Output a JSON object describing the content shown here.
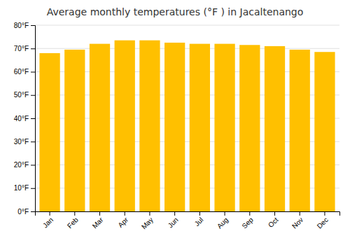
{
  "chart_data": {
    "type": "bar",
    "title": "Average monthly temperatures (°F ) in Jacaltenango",
    "categories": [
      "Jan",
      "Feb",
      "Mar",
      "Apr",
      "May",
      "Jun",
      "Jul",
      "Aug",
      "Sep",
      "Oct",
      "Nov",
      "Dec"
    ],
    "values": [
      68.0,
      69.5,
      72.0,
      73.5,
      73.5,
      72.5,
      72.0,
      72.0,
      71.5,
      71.0,
      69.5,
      68.5
    ],
    "color": "#FFC000",
    "ylim": [
      0,
      80
    ],
    "yticks": [
      {
        "value": 0,
        "label": "0°F"
      },
      {
        "value": 10,
        "label": "10°F"
      },
      {
        "value": 20,
        "label": "20°F"
      },
      {
        "value": 30,
        "label": "30°F"
      },
      {
        "value": 40,
        "label": "40°F"
      },
      {
        "value": 50,
        "label": "50°F"
      },
      {
        "value": 60,
        "label": "60°F"
      },
      {
        "value": 70,
        "label": "70°F"
      },
      {
        "value": 80,
        "label": "80°F"
      }
    ],
    "grid": true
  }
}
